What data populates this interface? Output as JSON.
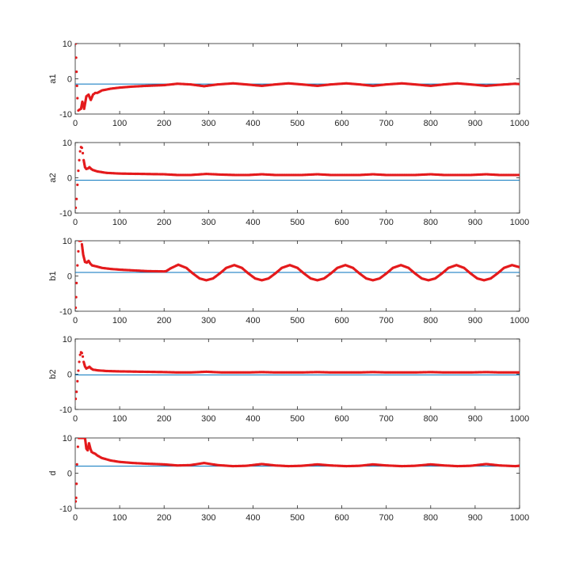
{
  "chart_data": [
    {
      "type": "line",
      "ylabel": "a1",
      "xlim": [
        0,
        1000
      ],
      "ylim": [
        -10,
        10
      ],
      "xticks": [
        0,
        100,
        200,
        300,
        400,
        500,
        600,
        700,
        800,
        900,
        1000
      ],
      "yticks": [
        -10,
        0,
        10
      ],
      "series": [
        {
          "role": "reference",
          "color": "#0072BD",
          "x": [
            0,
            1000
          ],
          "y": [
            -1.5,
            -1.5
          ]
        },
        {
          "role": "estimate",
          "color": "#E41A1C",
          "marker": "dot",
          "x": [
            1,
            2,
            3,
            4,
            5,
            7,
            10,
            13,
            16,
            20,
            25,
            30,
            35,
            40,
            45,
            50,
            60,
            80,
            100,
            130,
            160,
            200,
            230,
            260,
            290,
            320,
            355,
            385,
            420,
            450,
            480,
            510,
            545,
            575,
            610,
            640,
            670,
            700,
            735,
            765,
            800,
            830,
            860,
            890,
            925,
            955,
            990,
            1000
          ],
          "y": [
            10,
            6,
            2,
            -2,
            -5.5,
            -9,
            -8.7,
            -8.5,
            -6.5,
            -8.5,
            -5,
            -4.5,
            -6,
            -4.5,
            -4,
            -4,
            -3.3,
            -2.8,
            -2.5,
            -2.2,
            -2,
            -1.8,
            -1.4,
            -1.6,
            -2.1,
            -1.6,
            -1.3,
            -1.6,
            -2.0,
            -1.6,
            -1.3,
            -1.6,
            -2.0,
            -1.6,
            -1.3,
            -1.6,
            -2.0,
            -1.6,
            -1.3,
            -1.6,
            -2.0,
            -1.6,
            -1.3,
            -1.6,
            -2.0,
            -1.7,
            -1.4,
            -1.5
          ]
        }
      ]
    },
    {
      "type": "line",
      "ylabel": "a2",
      "xlim": [
        0,
        1000
      ],
      "ylim": [
        -10,
        10
      ],
      "xticks": [
        0,
        100,
        200,
        300,
        400,
        500,
        600,
        700,
        800,
        900,
        1000
      ],
      "yticks": [
        -10,
        0,
        10
      ],
      "series": [
        {
          "role": "reference",
          "color": "#0072BD",
          "x": [
            0,
            1000
          ],
          "y": [
            -0.7,
            -0.7
          ]
        },
        {
          "role": "estimate",
          "color": "#E41A1C",
          "marker": "dot",
          "x": [
            1,
            3,
            5,
            7,
            9,
            11,
            13,
            15,
            17,
            19,
            22,
            25,
            28,
            32,
            36,
            40,
            50,
            70,
            100,
            150,
            200,
            230,
            260,
            295,
            330,
            360,
            390,
            420,
            450,
            480,
            510,
            545,
            575,
            610,
            640,
            670,
            700,
            735,
            765,
            800,
            830,
            860,
            890,
            925,
            955,
            1000
          ],
          "y": [
            -8.5,
            -6,
            -2,
            2,
            5,
            7.5,
            8.7,
            8.5,
            7,
            5,
            3,
            2.5,
            2.6,
            3,
            2.5,
            2.2,
            1.8,
            1.4,
            1.2,
            1.1,
            1.0,
            0.8,
            0.8,
            1.1,
            0.9,
            0.8,
            0.8,
            1.0,
            0.8,
            0.8,
            0.8,
            1.0,
            0.8,
            0.8,
            0.8,
            1.0,
            0.8,
            0.8,
            0.8,
            1.0,
            0.8,
            0.8,
            0.8,
            1.0,
            0.8,
            0.8
          ]
        }
      ]
    },
    {
      "type": "line",
      "ylabel": "b1",
      "xlim": [
        0,
        1000
      ],
      "ylim": [
        -10,
        10
      ],
      "xticks": [
        0,
        100,
        200,
        300,
        400,
        500,
        600,
        700,
        800,
        900,
        1000
      ],
      "yticks": [
        -10,
        0,
        10
      ],
      "series": [
        {
          "role": "reference",
          "color": "#0072BD",
          "x": [
            0,
            1000
          ],
          "y": [
            1.0,
            1.0
          ]
        },
        {
          "role": "estimate",
          "color": "#E41A1C",
          "marker": "dot",
          "x": [
            1,
            2,
            3,
            5,
            7,
            9,
            11,
            13,
            15,
            18,
            22,
            26,
            30,
            34,
            38,
            45,
            60,
            80,
            100,
            130,
            160,
            200,
            205,
            215,
            232,
            250,
            265,
            280,
            295,
            310,
            325,
            340,
            358,
            375,
            390,
            405,
            420,
            435,
            450,
            465,
            483,
            500,
            515,
            530,
            545,
            560,
            575,
            590,
            608,
            625,
            640,
            655,
            670,
            685,
            700,
            715,
            733,
            750,
            765,
            780,
            795,
            810,
            825,
            840,
            858,
            875,
            890,
            905,
            920,
            935,
            950,
            965,
            983,
            1000
          ],
          "y": [
            -9,
            -6,
            -2,
            3,
            7,
            10,
            10,
            10,
            9,
            6,
            4,
            3.8,
            4.3,
            3.5,
            3.0,
            2.8,
            2.3,
            2.0,
            1.8,
            1.6,
            1.4,
            1.3,
            1.4,
            2.2,
            3.2,
            2.3,
            0.7,
            -0.7,
            -1.2,
            -0.7,
            0.7,
            2.3,
            3.1,
            2.3,
            0.7,
            -0.7,
            -1.2,
            -0.7,
            0.7,
            2.3,
            3.1,
            2.3,
            0.7,
            -0.7,
            -1.2,
            -0.7,
            0.7,
            2.3,
            3.1,
            2.3,
            0.7,
            -0.7,
            -1.2,
            -0.7,
            0.7,
            2.3,
            3.1,
            2.3,
            0.7,
            -0.7,
            -1.2,
            -0.7,
            0.7,
            2.3,
            3.1,
            2.3,
            0.7,
            -0.7,
            -1.2,
            -0.7,
            0.7,
            2.3,
            3.1,
            2.5
          ]
        }
      ]
    },
    {
      "type": "line",
      "ylabel": "b2",
      "xlim": [
        0,
        1000
      ],
      "ylim": [
        -10,
        10
      ],
      "xticks": [
        0,
        100,
        200,
        300,
        400,
        500,
        600,
        700,
        800,
        900,
        1000
      ],
      "yticks": [
        -10,
        0,
        10
      ],
      "series": [
        {
          "role": "reference",
          "color": "#0072BD",
          "x": [
            0,
            1000
          ],
          "y": [
            -0.2,
            -0.2
          ]
        },
        {
          "role": "estimate",
          "color": "#E41A1C",
          "marker": "dot",
          "x": [
            1,
            3,
            5,
            7,
            9,
            11,
            13,
            15,
            17,
            19,
            22,
            25,
            28,
            32,
            36,
            40,
            50,
            70,
            100,
            150,
            200,
            230,
            260,
            295,
            330,
            360,
            390,
            420,
            450,
            480,
            510,
            545,
            575,
            610,
            640,
            670,
            700,
            735,
            765,
            800,
            830,
            860,
            890,
            925,
            955,
            1000
          ],
          "y": [
            -7,
            -5,
            -2,
            1,
            3.5,
            5.5,
            6.2,
            6,
            5,
            3.5,
            2.2,
            1.6,
            1.8,
            2.1,
            1.6,
            1.3,
            1.1,
            0.9,
            0.8,
            0.7,
            0.6,
            0.5,
            0.5,
            0.7,
            0.5,
            0.5,
            0.5,
            0.6,
            0.5,
            0.5,
            0.5,
            0.6,
            0.5,
            0.5,
            0.5,
            0.6,
            0.5,
            0.5,
            0.5,
            0.6,
            0.5,
            0.5,
            0.5,
            0.6,
            0.5,
            0.5
          ]
        }
      ]
    },
    {
      "type": "line",
      "ylabel": "d",
      "xlim": [
        0,
        1000
      ],
      "ylim": [
        -10,
        10
      ],
      "xticks": [
        0,
        100,
        200,
        300,
        400,
        500,
        600,
        700,
        800,
        900,
        1000
      ],
      "yticks": [
        -10,
        0,
        10
      ],
      "series": [
        {
          "role": "reference",
          "color": "#0072BD",
          "x": [
            0,
            1000
          ],
          "y": [
            2.0,
            2.0
          ]
        },
        {
          "role": "estimate",
          "color": "#E41A1C",
          "marker": "dot",
          "x": [
            1,
            2,
            3,
            4,
            6,
            8,
            10,
            13,
            16,
            18,
            20,
            22,
            25,
            28,
            31,
            34,
            37,
            40,
            45,
            50,
            60,
            80,
            100,
            130,
            160,
            200,
            230,
            260,
            290,
            320,
            355,
            385,
            420,
            450,
            480,
            510,
            545,
            575,
            610,
            640,
            670,
            700,
            735,
            765,
            800,
            830,
            860,
            890,
            925,
            955,
            990,
            1000
          ],
          "y": [
            -8,
            -7,
            -3,
            2.5,
            7.5,
            10,
            10,
            10,
            10,
            10,
            10,
            10,
            7,
            6.5,
            8.5,
            7,
            6,
            5.8,
            5.5,
            5,
            4.3,
            3.6,
            3.2,
            2.9,
            2.7,
            2.5,
            2.2,
            2.3,
            2.9,
            2.3,
            2.0,
            2.1,
            2.6,
            2.2,
            2.0,
            2.1,
            2.5,
            2.2,
            2.0,
            2.1,
            2.5,
            2.2,
            2.0,
            2.1,
            2.5,
            2.2,
            2.0,
            2.1,
            2.6,
            2.2,
            2.0,
            2.1
          ]
        }
      ]
    }
  ]
}
